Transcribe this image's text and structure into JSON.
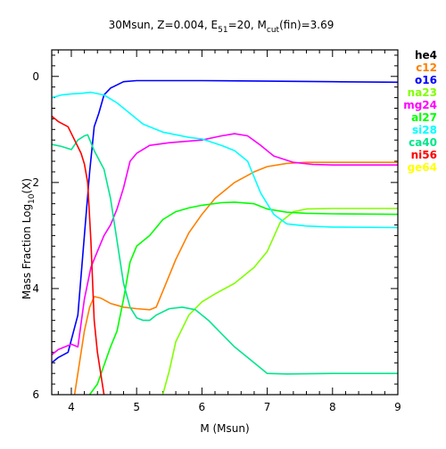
{
  "chart_data": {
    "type": "line",
    "title": {
      "prefix": "30Msun, Z=0.004, E",
      "sub1": "51",
      "mid": "=20, M",
      "sub2": "cut",
      "suffix": "(fin)=3.69"
    },
    "xlabel": "M (Msun)",
    "ylabel": {
      "prefix": "Mass Fraction Log",
      "sub": "10",
      "suffix": "(X)"
    },
    "xlim": [
      3.7,
      9.0
    ],
    "ylim": [
      -6.0,
      0.5
    ],
    "y_axis_inverted_labels": true,
    "x_ticks": [
      4,
      5,
      6,
      7,
      8,
      9
    ],
    "y_ticks": [
      0,
      -2,
      -4,
      -6
    ],
    "y_tick_labels": [
      "0",
      "2",
      "4",
      "6"
    ],
    "grid": false,
    "legend_position": "right",
    "series": [
      {
        "name": "he4",
        "color": "#000000",
        "points": []
      },
      {
        "name": "c12",
        "color": "#ff8000",
        "points": [
          [
            4.05,
            -6.0
          ],
          [
            4.2,
            -4.8
          ],
          [
            4.28,
            -4.35
          ],
          [
            4.35,
            -4.15
          ],
          [
            4.45,
            -4.18
          ],
          [
            4.6,
            -4.28
          ],
          [
            4.8,
            -4.35
          ],
          [
            5.0,
            -4.38
          ],
          [
            5.2,
            -4.4
          ],
          [
            5.3,
            -4.35
          ],
          [
            5.4,
            -4.05
          ],
          [
            5.6,
            -3.45
          ],
          [
            5.8,
            -2.95
          ],
          [
            6.0,
            -2.6
          ],
          [
            6.2,
            -2.3
          ],
          [
            6.5,
            -2.0
          ],
          [
            6.8,
            -1.8
          ],
          [
            7.0,
            -1.7
          ],
          [
            7.3,
            -1.64
          ],
          [
            7.6,
            -1.62
          ],
          [
            8.0,
            -1.62
          ],
          [
            9.0,
            -1.62
          ]
        ]
      },
      {
        "name": "o16",
        "color": "#0000ff",
        "points": [
          [
            3.7,
            -5.4
          ],
          [
            3.8,
            -5.3
          ],
          [
            3.95,
            -5.2
          ],
          [
            4.1,
            -4.5
          ],
          [
            4.2,
            -3.0
          ],
          [
            4.28,
            -1.8
          ],
          [
            4.35,
            -0.95
          ],
          [
            4.42,
            -0.7
          ],
          [
            4.5,
            -0.35
          ],
          [
            4.6,
            -0.22
          ],
          [
            4.8,
            -0.1
          ],
          [
            5.0,
            -0.08
          ],
          [
            6.0,
            -0.08
          ],
          [
            7.0,
            -0.09
          ],
          [
            8.0,
            -0.1
          ],
          [
            9.0,
            -0.11
          ]
        ]
      },
      {
        "name": "na23",
        "color": "#80ff00",
        "points": [
          [
            5.4,
            -6.0
          ],
          [
            5.5,
            -5.55
          ],
          [
            5.6,
            -5.0
          ],
          [
            5.8,
            -4.5
          ],
          [
            6.0,
            -4.25
          ],
          [
            6.2,
            -4.1
          ],
          [
            6.5,
            -3.9
          ],
          [
            6.8,
            -3.6
          ],
          [
            7.0,
            -3.3
          ],
          [
            7.2,
            -2.75
          ],
          [
            7.4,
            -2.55
          ],
          [
            7.6,
            -2.5
          ],
          [
            8.0,
            -2.49
          ],
          [
            9.0,
            -2.49
          ]
        ]
      },
      {
        "name": "mg24",
        "color": "#ff00ff",
        "points": [
          [
            3.7,
            -5.25
          ],
          [
            3.8,
            -5.15
          ],
          [
            4.0,
            -5.05
          ],
          [
            4.1,
            -5.1
          ],
          [
            4.2,
            -4.2
          ],
          [
            4.3,
            -3.6
          ],
          [
            4.4,
            -3.3
          ],
          [
            4.5,
            -3.0
          ],
          [
            4.6,
            -2.8
          ],
          [
            4.7,
            -2.5
          ],
          [
            4.8,
            -2.1
          ],
          [
            4.9,
            -1.6
          ],
          [
            5.0,
            -1.45
          ],
          [
            5.2,
            -1.3
          ],
          [
            5.5,
            -1.25
          ],
          [
            6.0,
            -1.2
          ],
          [
            6.3,
            -1.12
          ],
          [
            6.5,
            -1.08
          ],
          [
            6.7,
            -1.12
          ],
          [
            6.9,
            -1.3
          ],
          [
            7.1,
            -1.5
          ],
          [
            7.4,
            -1.62
          ],
          [
            7.7,
            -1.66
          ],
          [
            8.0,
            -1.67
          ],
          [
            9.0,
            -1.67
          ]
        ]
      },
      {
        "name": "al27",
        "color": "#00ff00",
        "points": [
          [
            4.28,
            -6.0
          ],
          [
            4.4,
            -5.8
          ],
          [
            4.6,
            -5.1
          ],
          [
            4.7,
            -4.8
          ],
          [
            4.8,
            -4.2
          ],
          [
            4.9,
            -3.5
          ],
          [
            5.0,
            -3.2
          ],
          [
            5.2,
            -3.0
          ],
          [
            5.4,
            -2.7
          ],
          [
            5.6,
            -2.55
          ],
          [
            5.8,
            -2.48
          ],
          [
            6.0,
            -2.43
          ],
          [
            6.3,
            -2.38
          ],
          [
            6.5,
            -2.37
          ],
          [
            6.8,
            -2.4
          ],
          [
            7.0,
            -2.5
          ],
          [
            7.3,
            -2.56
          ],
          [
            7.6,
            -2.58
          ],
          [
            8.0,
            -2.59
          ],
          [
            9.0,
            -2.6
          ]
        ]
      },
      {
        "name": "si28",
        "color": "#00ffff",
        "points": [
          [
            3.7,
            -0.4
          ],
          [
            3.85,
            -0.35
          ],
          [
            4.0,
            -0.33
          ],
          [
            4.15,
            -0.32
          ],
          [
            4.3,
            -0.3
          ],
          [
            4.5,
            -0.35
          ],
          [
            4.7,
            -0.5
          ],
          [
            4.9,
            -0.7
          ],
          [
            5.1,
            -0.9
          ],
          [
            5.4,
            -1.05
          ],
          [
            5.8,
            -1.15
          ],
          [
            6.0,
            -1.18
          ],
          [
            6.3,
            -1.3
          ],
          [
            6.5,
            -1.4
          ],
          [
            6.7,
            -1.6
          ],
          [
            6.9,
            -2.2
          ],
          [
            7.1,
            -2.6
          ],
          [
            7.3,
            -2.78
          ],
          [
            7.6,
            -2.82
          ],
          [
            8.0,
            -2.84
          ],
          [
            9.0,
            -2.85
          ]
        ]
      },
      {
        "name": "ca40",
        "color": "#00e68c",
        "points": [
          [
            3.7,
            -1.28
          ],
          [
            3.85,
            -1.32
          ],
          [
            4.0,
            -1.38
          ],
          [
            4.1,
            -1.2
          ],
          [
            4.2,
            -1.12
          ],
          [
            4.25,
            -1.1
          ],
          [
            4.35,
            -1.4
          ],
          [
            4.5,
            -1.75
          ],
          [
            4.6,
            -2.3
          ],
          [
            4.7,
            -3.1
          ],
          [
            4.8,
            -3.9
          ],
          [
            4.9,
            -4.35
          ],
          [
            5.0,
            -4.55
          ],
          [
            5.1,
            -4.6
          ],
          [
            5.2,
            -4.6
          ],
          [
            5.3,
            -4.5
          ],
          [
            5.5,
            -4.38
          ],
          [
            5.7,
            -4.35
          ],
          [
            5.9,
            -4.4
          ],
          [
            6.1,
            -4.6
          ],
          [
            6.3,
            -4.85
          ],
          [
            6.5,
            -5.1
          ],
          [
            6.7,
            -5.3
          ],
          [
            6.9,
            -5.5
          ],
          [
            7.0,
            -5.6
          ],
          [
            7.3,
            -5.61
          ],
          [
            8.0,
            -5.6
          ],
          [
            9.0,
            -5.6
          ]
        ]
      },
      {
        "name": "ni56",
        "color": "#ff0000",
        "points": [
          [
            3.7,
            -0.75
          ],
          [
            3.8,
            -0.85
          ],
          [
            3.95,
            -0.95
          ],
          [
            4.05,
            -1.2
          ],
          [
            4.15,
            -1.45
          ],
          [
            4.2,
            -1.65
          ],
          [
            4.25,
            -2.0
          ],
          [
            4.3,
            -3.1
          ],
          [
            4.35,
            -4.6
          ],
          [
            4.4,
            -5.2
          ],
          [
            4.45,
            -5.6
          ],
          [
            4.5,
            -6.0
          ]
        ]
      },
      {
        "name": "ge64",
        "color": "#ffff00",
        "points": []
      }
    ]
  }
}
